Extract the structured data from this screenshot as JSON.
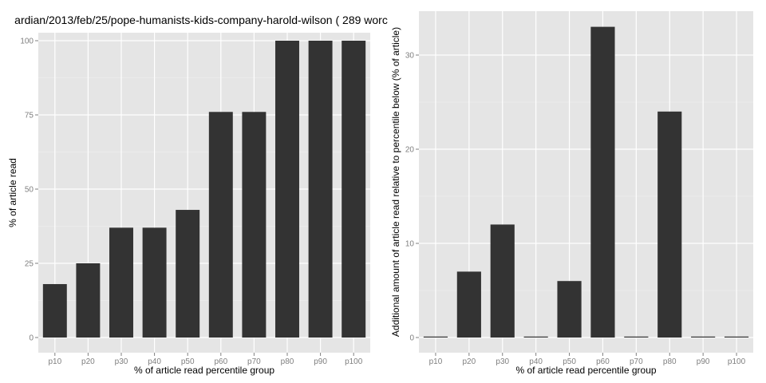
{
  "title": "ardian/2013/feb/25/pope-humanists-kids-company-harold-wilson ( 289 worc",
  "chart_data": [
    {
      "type": "bar",
      "title": "ardian/2013/feb/25/pope-humanists-kids-company-harold-wilson ( 289 worc",
      "categories": [
        "p10",
        "p20",
        "p30",
        "p40",
        "p50",
        "p60",
        "p70",
        "p80",
        "p90",
        "p100"
      ],
      "values": [
        18,
        25,
        37,
        37,
        43,
        76,
        76,
        100,
        100,
        100
      ],
      "xlabel": "% of article read percentile group",
      "ylabel": "% of article read",
      "ylim": [
        0,
        100
      ],
      "yticks": [
        0,
        25,
        50,
        75,
        100
      ],
      "grid": true
    },
    {
      "type": "bar",
      "title": "",
      "categories": [
        "p10",
        "p20",
        "p30",
        "p40",
        "p50",
        "p60",
        "p70",
        "p80",
        "p90",
        "p100"
      ],
      "values": [
        0,
        7,
        12,
        0,
        6,
        33,
        0,
        24,
        0,
        0
      ],
      "xlabel": "% of article read percentile group",
      "ylabel": "Additional amount of article read relative to percentile below (% of article)",
      "ylim": [
        0,
        33
      ],
      "yticks": [
        0,
        10,
        20,
        30
      ],
      "grid": true
    }
  ],
  "colors": {
    "panel_background": "#e5e5e5",
    "gridline": "#ffffff",
    "bar": "#333333",
    "tick_label": "#7f7f7f",
    "axis_title": "#000000"
  }
}
